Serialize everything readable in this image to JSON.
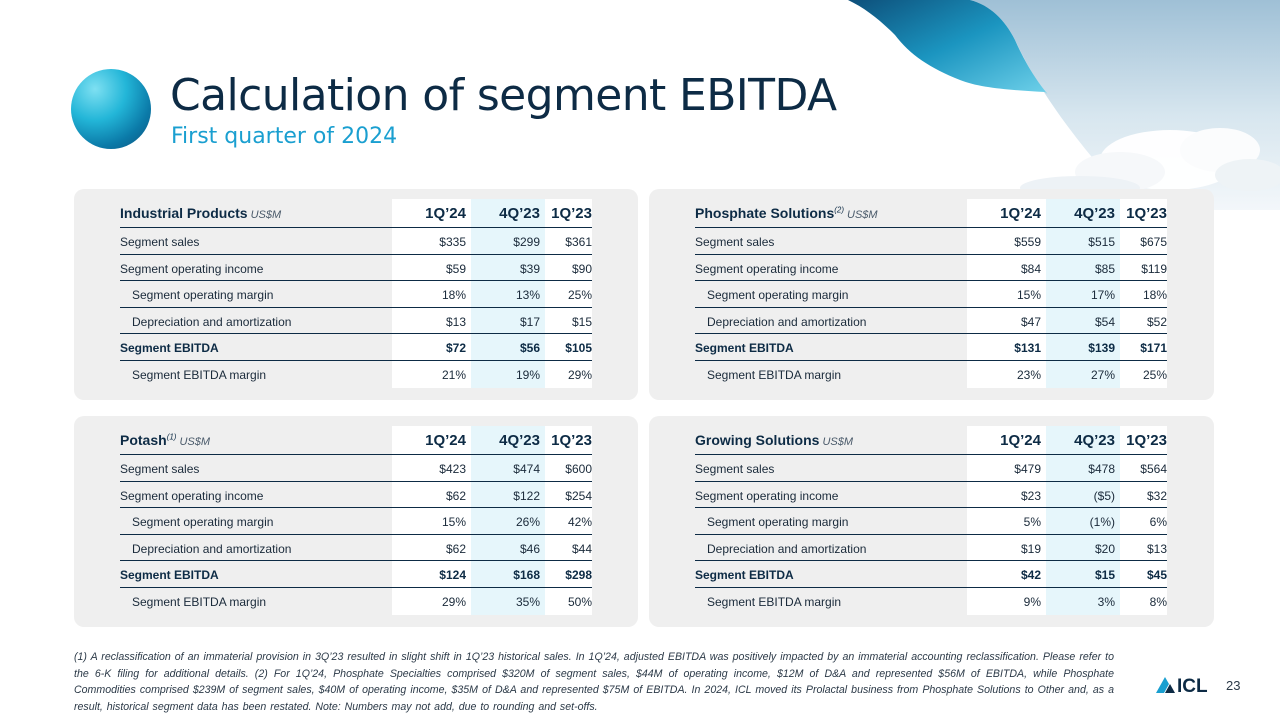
{
  "title": "Calculation of segment EBITDA",
  "subtitle": "First quarter of 2024",
  "column_headers": [
    "1Q’24",
    "4Q’23",
    "1Q’23"
  ],
  "panels": [
    {
      "name": "Industrial Products",
      "sup": "",
      "unit": "US$M",
      "rows": [
        {
          "label": "Segment sales",
          "values": [
            "$335",
            "$299",
            "$361"
          ]
        },
        {
          "label": "Segment operating  income",
          "values": [
            "$59",
            "$39",
            "$90"
          ]
        },
        {
          "label": "Segment operating  margin",
          "values": [
            "18%",
            "13%",
            "25%"
          ]
        },
        {
          "label": "Depreciation and amortization",
          "values": [
            "$13",
            "$17",
            "$15"
          ]
        },
        {
          "label": "Segment EBITDA",
          "values": [
            "$72",
            "$56",
            "$105"
          ]
        },
        {
          "label": "Segment EBITDA margin",
          "values": [
            "21%",
            "19%",
            "29%"
          ]
        }
      ]
    },
    {
      "name": "Phosphate Solutions",
      "sup": "(2)",
      "unit": "US$M",
      "rows": [
        {
          "label": "Segment sales",
          "values": [
            "$559",
            "$515",
            "$675"
          ]
        },
        {
          "label": "Segment operating  income",
          "values": [
            "$84",
            "$85",
            "$119"
          ]
        },
        {
          "label": "Segment operating  margin",
          "values": [
            "15%",
            "17%",
            "18%"
          ]
        },
        {
          "label": "Depreciation and amortization",
          "values": [
            "$47",
            "$54",
            "$52"
          ]
        },
        {
          "label": "Segment EBITDA",
          "values": [
            "$131",
            "$139",
            "$171"
          ]
        },
        {
          "label": "Segment EBITDA margin",
          "values": [
            "23%",
            "27%",
            "25%"
          ]
        }
      ]
    },
    {
      "name": "Potash",
      "sup": "(1)",
      "unit": "US$M",
      "rows": [
        {
          "label": "Segment sales",
          "values": [
            "$423",
            "$474",
            "$600"
          ]
        },
        {
          "label": "Segment operating  income",
          "values": [
            "$62",
            "$122",
            "$254"
          ]
        },
        {
          "label": "Segment operating  margin",
          "values": [
            "15%",
            "26%",
            "42%"
          ]
        },
        {
          "label": "Depreciation and amortization",
          "values": [
            "$62",
            "$46",
            "$44"
          ]
        },
        {
          "label": "Segment EBITDA",
          "values": [
            "$124",
            "$168",
            "$298"
          ]
        },
        {
          "label": "Segment EBITDA margin",
          "values": [
            "29%",
            "35%",
            "50%"
          ]
        }
      ]
    },
    {
      "name": "Growing Solutions",
      "sup": "",
      "unit": "US$M",
      "rows": [
        {
          "label": "Segment sales",
          "values": [
            "$479",
            "$478",
            "$564"
          ]
        },
        {
          "label": "Segment operating  income",
          "values": [
            "$23",
            "($5)",
            "$32"
          ]
        },
        {
          "label": "Segment operating  margin",
          "values": [
            "5%",
            "(1%)",
            "6%"
          ]
        },
        {
          "label": "Depreciation and amortization",
          "values": [
            "$19",
            "$20",
            "$13"
          ]
        },
        {
          "label": "Segment EBITDA",
          "values": [
            "$42",
            "$15",
            "$45"
          ]
        },
        {
          "label": "Segment EBITDA margin",
          "values": [
            "9%",
            "3%",
            "8%"
          ]
        }
      ]
    }
  ],
  "footnote": "(1) A reclassification  of an immaterial provision in 3Q’23 resulted  in slight shift in 1Q’23 historical sales. In 1Q’24, adjusted EBITDA was positively impacted by an immaterial accounting reclassification.  Please refer to the 6-K filing for additional details. (2) For 1Q’24, Phosphate Specialties  comprised $320M of segment sales, $44M of operating income, $12M of D&A and represented  $56M of EBITDA, while Phosphate Commodities comprised  $239M of segment sales, $40M of operating income, $35M of D&A and represented  $75M of EBITDA. In 2024, ICL moved its Prolactal business from Phosphate Solutions to Other and, as a result, historical segment data has been restated. Note: Numbers may not add, due to rounding  and set-offs.",
  "logo_text": "ICL",
  "page_number": "23",
  "colors": {
    "navy": "#0d2b45",
    "accent": "#1a9fd0",
    "panel": "#efefef",
    "highlight": "#e6f6fb"
  }
}
